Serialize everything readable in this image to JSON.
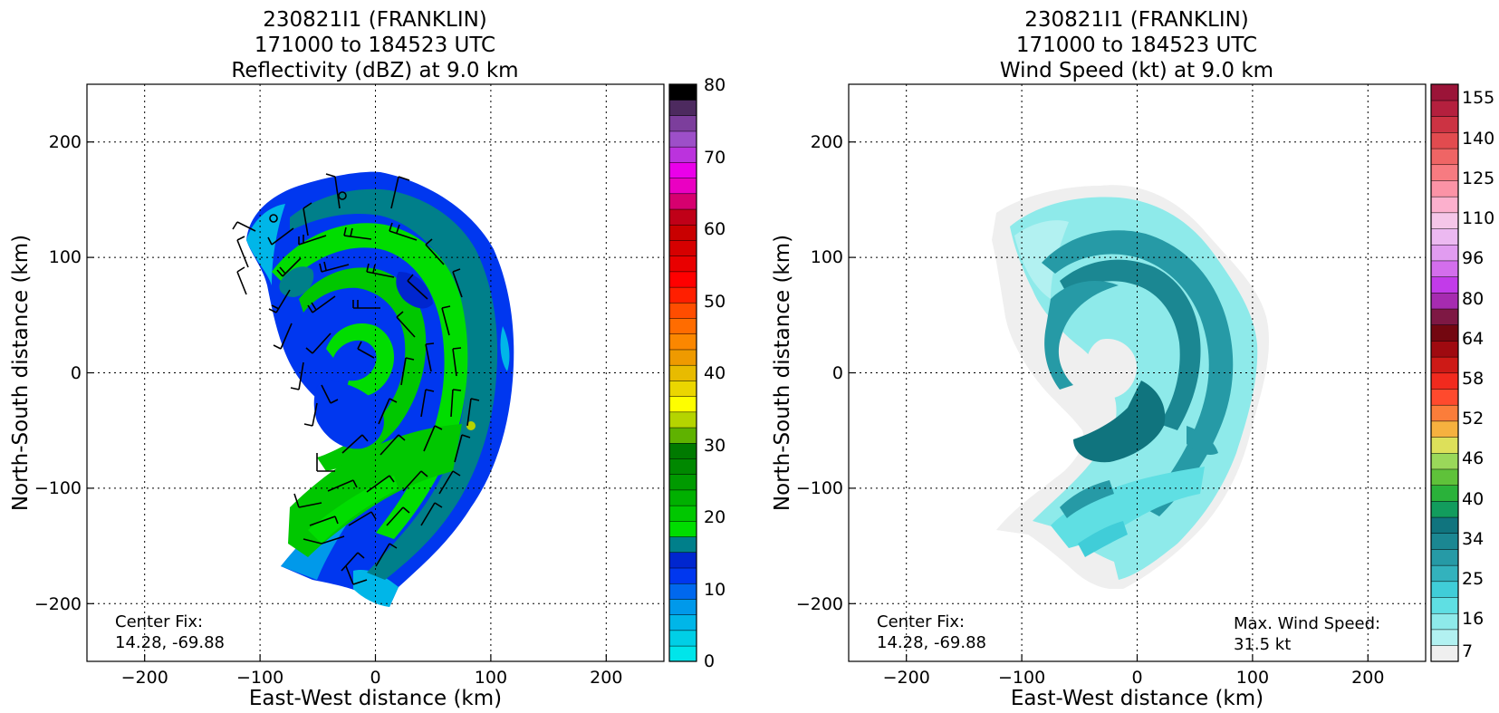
{
  "panels": [
    {
      "id": "reflectivity",
      "title_lines": [
        "230821I1 (FRANKLIN)",
        "171000 to 184523 UTC",
        "Reflectivity (dBZ) at 9.0 km"
      ],
      "xlabel": "East-West distance (km)",
      "ylabel": "North-South distance (km)",
      "x_ticks": [
        "−200",
        "−100",
        "0",
        "100",
        "200"
      ],
      "y_ticks": [
        "200",
        "100",
        "0",
        "−100",
        "−200"
      ],
      "center_fix_label": "Center Fix:",
      "center_fix_value": "14.28, -69.88",
      "colorbar_labels": [
        "80",
        "70",
        "60",
        "50",
        "40",
        "30",
        "20",
        "10",
        "0"
      ]
    },
    {
      "id": "wind",
      "title_lines": [
        "230821I1 (FRANKLIN)",
        "171000 to 184523 UTC",
        "Wind Speed (kt) at 9.0 km"
      ],
      "xlabel": "East-West distance (km)",
      "ylabel": "North-South distance (km)",
      "x_ticks": [
        "−200",
        "−100",
        "0",
        "100",
        "200"
      ],
      "y_ticks": [
        "200",
        "100",
        "0",
        "−100",
        "−200"
      ],
      "center_fix_label": "Center Fix:",
      "center_fix_value": "14.28, -69.88",
      "max_wind_label": "Max. Wind Speed:",
      "max_wind_value": "31.5 kt",
      "colorbar_labels": [
        "155",
        "140",
        "125",
        "110",
        "96",
        "80",
        "64",
        "58",
        "52",
        "46",
        "40",
        "34",
        "25",
        "16",
        "7"
      ]
    }
  ],
  "chart_data": [
    {
      "type": "heatmap",
      "title": "230821I1 (FRANKLIN) 171000 to 184523 UTC Reflectivity (dBZ) at 9.0 km",
      "xlabel": "East-West distance (km)",
      "ylabel": "North-South distance (km)",
      "xlim": [
        -250,
        250
      ],
      "ylim": [
        -250,
        250
      ],
      "x_ticks": [
        -200,
        -100,
        0,
        100,
        200
      ],
      "y_ticks": [
        -200,
        -100,
        0,
        100,
        200
      ],
      "grid": true,
      "colorbar": {
        "range": [
          0,
          80
        ],
        "ticks": [
          0,
          10,
          20,
          30,
          40,
          50,
          60,
          70,
          80
        ],
        "colors": [
          "#00e5ea",
          "#00cfe6",
          "#00b6e8",
          "#0099ea",
          "#0068ee",
          "#0037ef",
          "#0026cf",
          "#007f8a",
          "#00dd00",
          "#00c700",
          "#00b000",
          "#009a00",
          "#008800",
          "#007a00",
          "#5fb200",
          "#b5d400",
          "#fefe00",
          "#ebd600",
          "#e8bb00",
          "#ee9a00",
          "#fb8700",
          "#ff6c00",
          "#ff4d00",
          "#ff1f00",
          "#ff0000",
          "#e90000",
          "#d60000",
          "#c90000",
          "#c00018",
          "#d6006f",
          "#ea00c2",
          "#ea00ea",
          "#bb33dd",
          "#9d4fc8",
          "#7c3e9c",
          "#4d2a5f",
          "#000000"
        ]
      },
      "center_fix": [
        14.28,
        -69.88
      ]
    },
    {
      "type": "heatmap",
      "title": "230821I1 (FRANKLIN) 171000 to 184523 UTC Wind Speed (kt) at 9.0 km",
      "xlabel": "East-West distance (km)",
      "ylabel": "North-South distance (km)",
      "xlim": [
        -250,
        250
      ],
      "ylim": [
        -250,
        250
      ],
      "x_ticks": [
        -200,
        -100,
        0,
        100,
        200
      ],
      "y_ticks": [
        -200,
        -100,
        0,
        100,
        200
      ],
      "grid": true,
      "colorbar": {
        "ticks": [
          7,
          16,
          25,
          34,
          40,
          46,
          52,
          58,
          64,
          80,
          96,
          110,
          125,
          140,
          155
        ],
        "colors": [
          "#efefef",
          "#b2f1f1",
          "#8eeaea",
          "#5fdfe3",
          "#40cdd8",
          "#33b2bd",
          "#269aa6",
          "#1b8792",
          "#10747e",
          "#129c5d",
          "#2ab23a",
          "#5fc23a",
          "#9ad85a",
          "#dde05a",
          "#f6b13f",
          "#fb7d3a",
          "#ff4a2d",
          "#f12a1e",
          "#cd1a16",
          "#9f0a10",
          "#730710",
          "#7e1844",
          "#a62bb0",
          "#c23be9",
          "#d36eec",
          "#e19cf0",
          "#ecb9f1",
          "#f5c6e8",
          "#fcb0cd",
          "#fb93a6",
          "#f77b81",
          "#ef6565",
          "#e24b4f",
          "#cc3343",
          "#b4203e",
          "#9b1438"
        ]
      },
      "center_fix": [
        14.28,
        -69.88
      ],
      "max_wind_speed_kt": 31.5
    }
  ]
}
